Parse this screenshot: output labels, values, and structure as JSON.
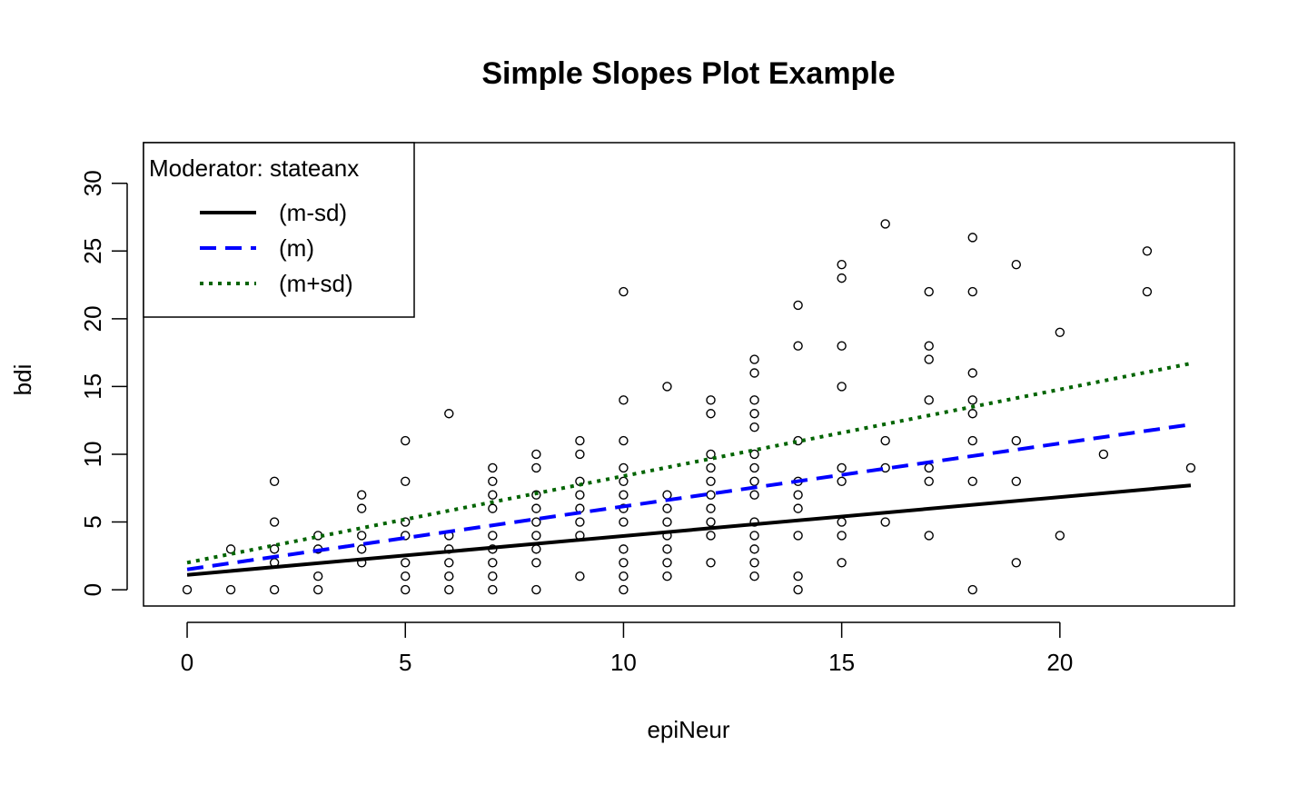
{
  "chart_data": {
    "type": "scatter",
    "title": "Simple Slopes Plot Example",
    "xlabel": "epiNeur",
    "ylabel": "bdi",
    "xlim": [
      -1.0,
      24.0
    ],
    "ylim": [
      -1.2,
      33.0
    ],
    "xticks": [
      0,
      5,
      10,
      15,
      20
    ],
    "yticks": [
      0,
      5,
      10,
      15,
      20,
      25,
      30
    ],
    "grid": false,
    "legend": {
      "position": "top-left",
      "title": "Moderator: stateanx",
      "entries": [
        {
          "label": "(m-sd)",
          "color": "#000000",
          "style": "solid"
        },
        {
          "label": "(m)",
          "color": "#0000ff",
          "style": "dashed"
        },
        {
          "label": "(m+sd)",
          "color": "#006400",
          "style": "dotted"
        }
      ]
    },
    "points": [
      [
        0,
        0
      ],
      [
        1,
        3
      ],
      [
        1,
        0
      ],
      [
        2,
        8
      ],
      [
        2,
        5
      ],
      [
        2,
        3
      ],
      [
        2,
        2
      ],
      [
        2,
        0
      ],
      [
        3,
        4
      ],
      [
        3,
        3
      ],
      [
        3,
        1
      ],
      [
        3,
        0
      ],
      [
        4,
        7
      ],
      [
        4,
        6
      ],
      [
        4,
        4
      ],
      [
        4,
        3
      ],
      [
        4,
        2
      ],
      [
        5,
        11
      ],
      [
        5,
        8
      ],
      [
        5,
        5
      ],
      [
        5,
        4
      ],
      [
        5,
        2
      ],
      [
        5,
        1
      ],
      [
        5,
        0
      ],
      [
        6,
        13
      ],
      [
        6,
        4
      ],
      [
        6,
        3
      ],
      [
        6,
        2
      ],
      [
        6,
        1
      ],
      [
        6,
        0
      ],
      [
        7,
        9
      ],
      [
        7,
        8
      ],
      [
        7,
        7
      ],
      [
        7,
        6
      ],
      [
        7,
        4
      ],
      [
        7,
        3
      ],
      [
        7,
        2
      ],
      [
        7,
        1
      ],
      [
        7,
        0
      ],
      [
        8,
        10
      ],
      [
        8,
        9
      ],
      [
        8,
        7
      ],
      [
        8,
        6
      ],
      [
        8,
        5
      ],
      [
        8,
        4
      ],
      [
        8,
        3
      ],
      [
        8,
        2
      ],
      [
        8,
        0
      ],
      [
        9,
        11
      ],
      [
        9,
        10
      ],
      [
        9,
        8
      ],
      [
        9,
        7
      ],
      [
        9,
        6
      ],
      [
        9,
        5
      ],
      [
        9,
        4
      ],
      [
        9,
        1
      ],
      [
        10,
        22
      ],
      [
        10,
        14
      ],
      [
        10,
        11
      ],
      [
        10,
        9
      ],
      [
        10,
        8
      ],
      [
        10,
        7
      ],
      [
        10,
        6
      ],
      [
        10,
        5
      ],
      [
        10,
        3
      ],
      [
        10,
        2
      ],
      [
        10,
        1
      ],
      [
        10,
        0
      ],
      [
        11,
        15
      ],
      [
        11,
        7
      ],
      [
        11,
        6
      ],
      [
        11,
        5
      ],
      [
        11,
        4
      ],
      [
        11,
        3
      ],
      [
        11,
        2
      ],
      [
        11,
        1
      ],
      [
        12,
        14
      ],
      [
        12,
        13
      ],
      [
        12,
        10
      ],
      [
        12,
        9
      ],
      [
        12,
        8
      ],
      [
        12,
        7
      ],
      [
        12,
        6
      ],
      [
        12,
        5
      ],
      [
        12,
        4
      ],
      [
        12,
        2
      ],
      [
        13,
        17
      ],
      [
        13,
        16
      ],
      [
        13,
        14
      ],
      [
        13,
        13
      ],
      [
        13,
        12
      ],
      [
        13,
        10
      ],
      [
        13,
        9
      ],
      [
        13,
        8
      ],
      [
        13,
        7
      ],
      [
        13,
        5
      ],
      [
        13,
        4
      ],
      [
        13,
        3
      ],
      [
        13,
        2
      ],
      [
        13,
        1
      ],
      [
        14,
        21
      ],
      [
        14,
        18
      ],
      [
        14,
        11
      ],
      [
        14,
        8
      ],
      [
        14,
        7
      ],
      [
        14,
        6
      ],
      [
        14,
        4
      ],
      [
        14,
        1
      ],
      [
        14,
        0
      ],
      [
        15,
        24
      ],
      [
        15,
        23
      ],
      [
        15,
        18
      ],
      [
        15,
        15
      ],
      [
        15,
        9
      ],
      [
        15,
        8
      ],
      [
        15,
        5
      ],
      [
        15,
        4
      ],
      [
        15,
        2
      ],
      [
        16,
        27
      ],
      [
        16,
        11
      ],
      [
        16,
        9
      ],
      [
        16,
        5
      ],
      [
        17,
        22
      ],
      [
        17,
        18
      ],
      [
        17,
        17
      ],
      [
        17,
        14
      ],
      [
        17,
        9
      ],
      [
        17,
        8
      ],
      [
        17,
        4
      ],
      [
        18,
        26
      ],
      [
        18,
        22
      ],
      [
        18,
        16
      ],
      [
        18,
        14
      ],
      [
        18,
        13
      ],
      [
        18,
        11
      ],
      [
        18,
        8
      ],
      [
        18,
        0
      ],
      [
        19,
        24
      ],
      [
        19,
        11
      ],
      [
        19,
        8
      ],
      [
        19,
        2
      ],
      [
        20,
        19
      ],
      [
        20,
        4
      ],
      [
        21,
        10
      ],
      [
        22,
        25
      ],
      [
        22,
        22
      ],
      [
        23,
        9
      ]
    ],
    "series": [
      {
        "label": "(m-sd)",
        "x": [
          0,
          23
        ],
        "y": [
          1.1,
          7.7
        ],
        "color": "#000000",
        "style": "solid"
      },
      {
        "label": "(m)",
        "x": [
          0,
          23
        ],
        "y": [
          1.5,
          12.2
        ],
        "color": "#0000ff",
        "style": "dashed"
      },
      {
        "label": "(m+sd)",
        "x": [
          0,
          23
        ],
        "y": [
          2.0,
          16.7
        ],
        "color": "#006400",
        "style": "dotted"
      }
    ]
  }
}
